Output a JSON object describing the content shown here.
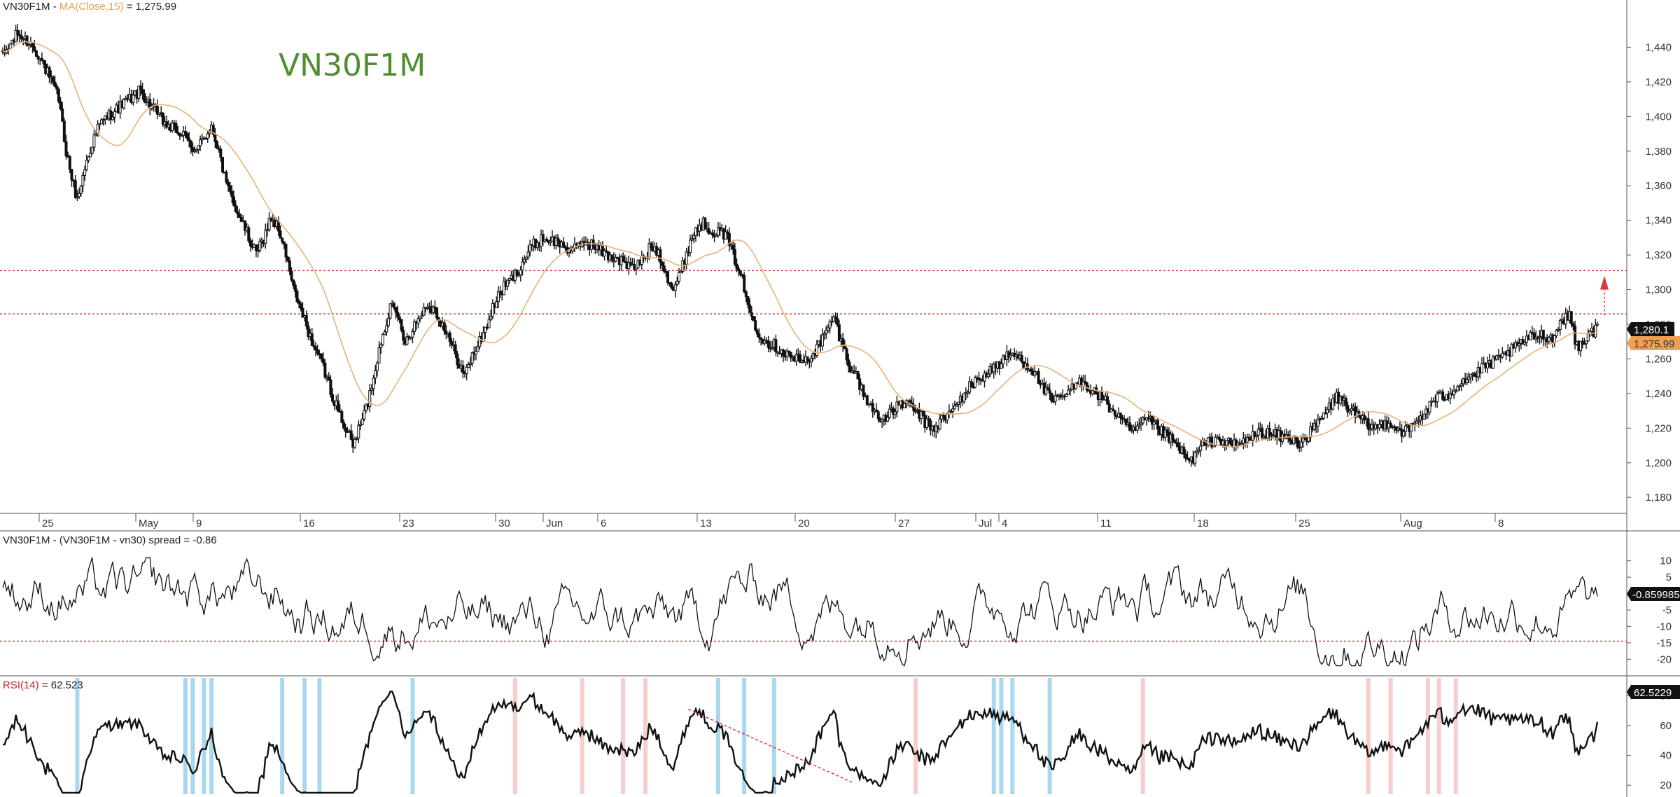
{
  "panels": {
    "price": {
      "legend_symbol": "VN30F1M",
      "legend_sep": " - ",
      "legend_ma_label": "MA(Close,15)",
      "legend_eq": " = ",
      "legend_ma_value": "1,275.99",
      "watermark": "VN30F1M",
      "last_price_tag": "1,280.1",
      "ma_tag": "1,275.99"
    },
    "spread": {
      "legend": "VN30F1M - (VN30F1M - vn30) spread = -0.86",
      "last_tag": "-0.859985"
    },
    "rsi": {
      "legend_name": "RSI(14)",
      "legend_eq": " = ",
      "legend_value": "62.523",
      "last_tag": "62.5229"
    }
  },
  "x_axis_labels": [
    "25",
    "May",
    "9",
    "16",
    "23",
    "30",
    "Jun",
    "6",
    "13",
    "20",
    "27",
    "Jul",
    "4",
    "11",
    "18",
    "25",
    "Aug",
    "8"
  ],
  "colors": {
    "candle": "#111111",
    "ma": "#e8b27a",
    "level_line": "#d93a3a",
    "oversold_band": "#9fd3ec",
    "overbought_band": "#f6c8c8",
    "rsi_low_segment": "#3fae3f",
    "rsi_high_segment": "#cc2222",
    "price_tag_bg": "#111111",
    "ma_tag_bg": "#f0a050",
    "watermark": "#4f8f2f"
  },
  "chart_data": [
    {
      "type": "candlestick",
      "panel": "price",
      "ylim": [
        1172,
        1460
      ],
      "yticks": [
        1180,
        1200,
        1220,
        1240,
        1260,
        1280,
        1300,
        1320,
        1340,
        1360,
        1380,
        1400,
        1420,
        1440
      ],
      "ytick_labels": [
        "1,180",
        "1,200",
        "1,220",
        "1,240",
        "1,260",
        "1,280",
        "1,300",
        "1,320",
        "1,340",
        "1,360",
        "1,380",
        "1,400",
        "1,420",
        "1,440"
      ],
      "horizontal_levels": [
        1286,
        1311
      ],
      "grid": false,
      "close_anchors": [
        [
          0,
          1435
        ],
        [
          8,
          1448
        ],
        [
          17,
          1440
        ],
        [
          24,
          1425
        ],
        [
          30,
          1410
        ],
        [
          34,
          1380
        ],
        [
          38,
          1360
        ],
        [
          40,
          1352
        ],
        [
          44,
          1370
        ],
        [
          48,
          1385
        ],
        [
          52,
          1395
        ],
        [
          56,
          1400
        ],
        [
          62,
          1405
        ],
        [
          68,
          1410
        ],
        [
          74,
          1415
        ],
        [
          80,
          1405
        ],
        [
          88,
          1395
        ],
        [
          96,
          1390
        ],
        [
          104,
          1380
        ],
        [
          112,
          1395
        ],
        [
          116,
          1380
        ],
        [
          120,
          1360
        ],
        [
          126,
          1345
        ],
        [
          132,
          1330
        ],
        [
          136,
          1320
        ],
        [
          140,
          1330
        ],
        [
          144,
          1342
        ],
        [
          148,
          1335
        ],
        [
          152,
          1320
        ],
        [
          156,
          1300
        ],
        [
          160,
          1288
        ],
        [
          166,
          1270
        ],
        [
          172,
          1255
        ],
        [
          176,
          1242
        ],
        [
          180,
          1230
        ],
        [
          184,
          1220
        ],
        [
          188,
          1210
        ],
        [
          192,
          1222
        ],
        [
          196,
          1235
        ],
        [
          200,
          1255
        ],
        [
          204,
          1275
        ],
        [
          208,
          1290
        ],
        [
          212,
          1285
        ],
        [
          216,
          1270
        ],
        [
          220,
          1278
        ],
        [
          224,
          1285
        ],
        [
          228,
          1292
        ],
        [
          232,
          1288
        ],
        [
          236,
          1280
        ],
        [
          240,
          1270
        ],
        [
          244,
          1260
        ],
        [
          248,
          1250
        ],
        [
          252,
          1262
        ],
        [
          256,
          1270
        ],
        [
          260,
          1280
        ],
        [
          264,
          1292
        ],
        [
          268,
          1300
        ],
        [
          272,
          1305
        ],
        [
          276,
          1310
        ],
        [
          280,
          1318
        ],
        [
          284,
          1325
        ],
        [
          290,
          1330
        ],
        [
          296,
          1328
        ],
        [
          302,
          1325
        ],
        [
          306,
          1322
        ],
        [
          312,
          1328
        ],
        [
          318,
          1325
        ],
        [
          324,
          1320
        ],
        [
          330,
          1318
        ],
        [
          334,
          1315
        ],
        [
          338,
          1312
        ],
        [
          344,
          1318
        ],
        [
          348,
          1325
        ],
        [
          352,
          1322
        ],
        [
          356,
          1310
        ],
        [
          360,
          1300
        ],
        [
          364,
          1310
        ],
        [
          368,
          1325
        ],
        [
          372,
          1335
        ],
        [
          376,
          1338
        ],
        [
          380,
          1335
        ],
        [
          384,
          1333
        ],
        [
          388,
          1332
        ],
        [
          392,
          1320
        ],
        [
          396,
          1310
        ],
        [
          400,
          1290
        ],
        [
          402,
          1285
        ],
        [
          406,
          1275
        ],
        [
          410,
          1270
        ],
        [
          414,
          1268
        ],
        [
          418,
          1265
        ],
        [
          422,
          1262
        ],
        [
          426,
          1260
        ],
        [
          430,
          1258
        ],
        [
          434,
          1262
        ],
        [
          438,
          1268
        ],
        [
          442,
          1275
        ],
        [
          446,
          1285
        ],
        [
          450,
          1270
        ],
        [
          454,
          1258
        ],
        [
          458,
          1250
        ],
        [
          462,
          1240
        ],
        [
          466,
          1232
        ],
        [
          470,
          1228
        ],
        [
          474,
          1225
        ],
        [
          478,
          1230
        ],
        [
          482,
          1235
        ],
        [
          488,
          1232
        ],
        [
          492,
          1228
        ],
        [
          496,
          1222
        ],
        [
          500,
          1220
        ],
        [
          504,
          1225
        ],
        [
          510,
          1230
        ],
        [
          516,
          1240
        ],
        [
          520,
          1245
        ],
        [
          524,
          1248
        ],
        [
          528,
          1252
        ],
        [
          532,
          1255
        ],
        [
          536,
          1258
        ],
        [
          540,
          1262
        ],
        [
          544,
          1262
        ],
        [
          548,
          1258
        ],
        [
          552,
          1255
        ],
        [
          556,
          1248
        ],
        [
          560,
          1240
        ],
        [
          564,
          1235
        ],
        [
          568,
          1238
        ],
        [
          572,
          1240
        ],
        [
          576,
          1245
        ],
        [
          580,
          1248
        ],
        [
          584,
          1242
        ],
        [
          590,
          1238
        ],
        [
          594,
          1232
        ],
        [
          598,
          1228
        ],
        [
          602,
          1222
        ],
        [
          606,
          1218
        ],
        [
          610,
          1220
        ],
        [
          614,
          1225
        ],
        [
          618,
          1222
        ],
        [
          622,
          1218
        ],
        [
          626,
          1214
        ],
        [
          630,
          1210
        ],
        [
          634,
          1205
        ],
        [
          636,
          1200
        ],
        [
          640,
          1204
        ],
        [
          644,
          1210
        ],
        [
          648,
          1212
        ],
        [
          652,
          1214
        ],
        [
          656,
          1212
        ],
        [
          660,
          1210
        ],
        [
          666,
          1212
        ],
        [
          670,
          1215
        ],
        [
          676,
          1218
        ],
        [
          682,
          1216
        ],
        [
          690,
          1214
        ],
        [
          696,
          1212
        ],
        [
          700,
          1215
        ],
        [
          704,
          1220
        ],
        [
          708,
          1226
        ],
        [
          712,
          1232
        ],
        [
          716,
          1238
        ],
        [
          720,
          1235
        ],
        [
          724,
          1230
        ],
        [
          728,
          1226
        ],
        [
          732,
          1222
        ],
        [
          736,
          1220
        ],
        [
          740,
          1222
        ],
        [
          744,
          1224
        ],
        [
          748,
          1220
        ],
        [
          752,
          1218
        ],
        [
          756,
          1220
        ],
        [
          760,
          1225
        ],
        [
          764,
          1230
        ],
        [
          768,
          1236
        ],
        [
          772,
          1238
        ],
        [
          776,
          1240
        ],
        [
          780,
          1244
        ],
        [
          784,
          1248
        ],
        [
          788,
          1250
        ],
        [
          792,
          1252
        ],
        [
          796,
          1256
        ],
        [
          800,
          1258
        ],
        [
          804,
          1260
        ],
        [
          808,
          1264
        ],
        [
          812,
          1266
        ],
        [
          816,
          1270
        ],
        [
          820,
          1272
        ],
        [
          824,
          1274
        ],
        [
          828,
          1274
        ],
        [
          832,
          1272
        ],
        [
          834,
          1275
        ],
        [
          836,
          1282
        ],
        [
          840,
          1285
        ],
        [
          842,
          1283
        ],
        [
          844,
          1270
        ],
        [
          846,
          1268
        ],
        [
          850,
          1272
        ],
        [
          854,
          1276
        ],
        [
          856,
          1280
        ]
      ],
      "ma_period": 15,
      "last_close": 1280.1,
      "last_ma": 1275.99
    },
    {
      "type": "line",
      "panel": "spread",
      "ylim": [
        -24,
        14
      ],
      "yticks": [
        -20,
        -15,
        -10,
        -5,
        5,
        10
      ],
      "ytick_labels": [
        "-20",
        "-15",
        "-10",
        "-5",
        "5",
        "10"
      ],
      "horizontal_levels": [
        -14.5
      ],
      "last_value": -0.859985
    },
    {
      "type": "line",
      "panel": "rsi",
      "ylim": [
        14,
        92
      ],
      "yticks": [
        20,
        40,
        60,
        80
      ],
      "ytick_labels": [
        "20",
        "40",
        "60",
        "80"
      ],
      "last_value": 62.5229,
      "trendline": [
        [
          368,
          71
        ],
        [
          456,
          22
        ]
      ]
    }
  ]
}
